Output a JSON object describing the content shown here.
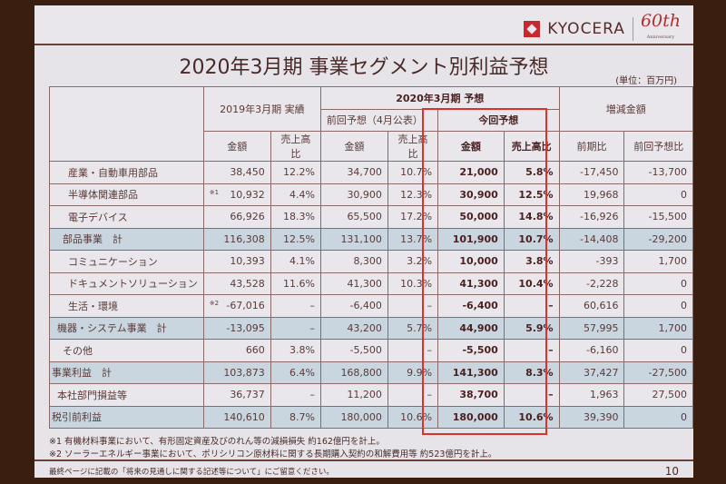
{
  "header": {
    "brand": "KYOCERA",
    "anniversary": "60th",
    "anniversary_sub": "Anniversary"
  },
  "title": "2020年3月期 事業セグメント別利益予想",
  "unit": "(単位：百万円)",
  "table": {
    "group_headers": {
      "fy2019": "2019年3月期 実績",
      "fy2020": "2020年3月期 予想",
      "prev_forecast": "前回予想（4月公表）",
      "current_forecast": "今回予想",
      "change": "増減金額"
    },
    "sub_headers": {
      "amount": "金額",
      "ratio": "売上高比",
      "yoy": "前期比",
      "vs_prev": "前回予想比"
    },
    "rows": [
      {
        "label": "産業・自動車用部品",
        "note": "",
        "a19": "38,450",
        "r19": "12.2%",
        "ap": "34,700",
        "rp": "10.7%",
        "ac": "21,000",
        "rc": "5.8%",
        "yoy": "-17,450",
        "vp": "-13,700",
        "type": "sub",
        "indent": 3
      },
      {
        "label": "半導体関連部品",
        "note": "※1",
        "a19": "10,932",
        "r19": "4.4%",
        "ap": "30,900",
        "rp": "12.3%",
        "ac": "30,900",
        "rc": "12.5%",
        "yoy": "19,968",
        "vp": "0",
        "type": "sub",
        "indent": 3
      },
      {
        "label": "電子デバイス",
        "note": "",
        "a19": "66,926",
        "r19": "18.3%",
        "ap": "65,500",
        "rp": "17.2%",
        "ac": "50,000",
        "rc": "14.8%",
        "yoy": "-16,926",
        "vp": "-15,500",
        "type": "sub",
        "indent": 3
      },
      {
        "label": "部品事業　計",
        "note": "",
        "a19": "116,308",
        "r19": "12.5%",
        "ap": "131,100",
        "rp": "13.7%",
        "ac": "101,900",
        "rc": "10.7%",
        "yoy": "-14,408",
        "vp": "-29,200",
        "type": "total",
        "indent": 2
      },
      {
        "label": "コミュニケーション",
        "note": "",
        "a19": "10,393",
        "r19": "4.1%",
        "ap": "8,300",
        "rp": "3.2%",
        "ac": "10,000",
        "rc": "3.8%",
        "yoy": "-393",
        "vp": "1,700",
        "type": "sub",
        "indent": 3
      },
      {
        "label": "ドキュメントソリューション",
        "note": "",
        "a19": "43,528",
        "r19": "11.6%",
        "ap": "41,300",
        "rp": "10.3%",
        "ac": "41,300",
        "rc": "10.4%",
        "yoy": "-2,228",
        "vp": "0",
        "type": "sub",
        "indent": 3
      },
      {
        "label": "生活・環境",
        "note": "※2",
        "a19": "-67,016",
        "r19": "–",
        "ap": "-6,400",
        "rp": "–",
        "ac": "-6,400",
        "rc": "–",
        "yoy": "60,616",
        "vp": "0",
        "type": "sub",
        "indent": 3
      },
      {
        "label": "機器・システム事業　計",
        "note": "",
        "a19": "-13,095",
        "r19": "–",
        "ap": "43,200",
        "rp": "5.7%",
        "ac": "44,900",
        "rc": "5.9%",
        "yoy": "57,995",
        "vp": "1,700",
        "type": "total",
        "indent": 1
      },
      {
        "label": "その他",
        "note": "",
        "a19": "660",
        "r19": "3.8%",
        "ap": "-5,500",
        "rp": "–",
        "ac": "-5,500",
        "rc": "–",
        "yoy": "-6,160",
        "vp": "0",
        "type": "sub",
        "indent": 2
      },
      {
        "label": "事業利益　計",
        "note": "",
        "a19": "103,873",
        "r19": "6.4%",
        "ap": "168,800",
        "rp": "9.9%",
        "ac": "141,300",
        "rc": "8.3%",
        "yoy": "37,427",
        "vp": "-27,500",
        "type": "total",
        "indent": 0
      },
      {
        "label": "本社部門損益等",
        "note": "",
        "a19": "36,737",
        "r19": "–",
        "ap": "11,200",
        "rp": "–",
        "ac": "38,700",
        "rc": "–",
        "yoy": "1,963",
        "vp": "27,500",
        "type": "sub",
        "indent": 1
      },
      {
        "label": "税引前利益",
        "note": "",
        "a19": "140,610",
        "r19": "8.7%",
        "ap": "180,000",
        "rp": "10.6%",
        "ac": "180,000",
        "rc": "10.6%",
        "yoy": "39,390",
        "vp": "0",
        "type": "total",
        "indent": 0
      }
    ]
  },
  "footnotes": [
    "※1 有機材料事業において、有形固定資産及びのれん等の減損損失 約162億円を計上。",
    "※2 ソーラーエネルギー事業において、ポリシリコン原材料に関する長期購入契約の和解費用等 約523億円を計上。"
  ],
  "disclaimer": "最終ページに記載の「将来の見通しに関する記述等について」にご留意ください。",
  "page_number": "10",
  "colors": {
    "accent_red": "#e0302a",
    "total_row_bg": "#c9d6e0",
    "text": "#5a3a38"
  }
}
